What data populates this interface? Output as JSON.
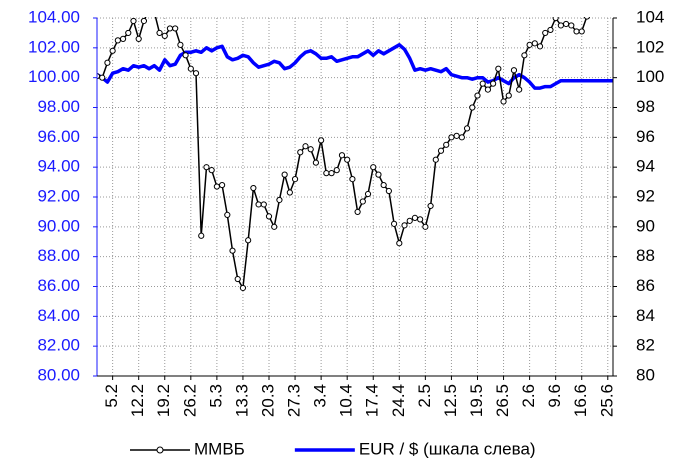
{
  "chart_data": {
    "type": "line",
    "categories": [
      null,
      null,
      null,
      "5.2",
      null,
      null,
      null,
      null,
      "12.2",
      null,
      null,
      null,
      null,
      "19.2",
      null,
      null,
      null,
      null,
      "26.2",
      null,
      null,
      null,
      null,
      "5.3",
      null,
      null,
      null,
      null,
      "13.3",
      null,
      null,
      null,
      null,
      "20.3",
      null,
      null,
      null,
      null,
      "27.3",
      null,
      null,
      null,
      null,
      "3.4",
      null,
      null,
      null,
      null,
      "10.4",
      null,
      null,
      null,
      null,
      "17.4",
      null,
      null,
      null,
      null,
      "24.4",
      null,
      null,
      null,
      null,
      "2.5",
      null,
      null,
      null,
      null,
      "12.5",
      null,
      null,
      null,
      null,
      "19.5",
      null,
      null,
      null,
      null,
      "26.5",
      null,
      null,
      null,
      null,
      "2.6",
      null,
      null,
      null,
      null,
      "9.6",
      null,
      null,
      null,
      null,
      "16.6",
      null,
      null,
      null,
      null,
      "25.6",
      null
    ],
    "series": [
      {
        "name": "ММВБ",
        "color": "#000000",
        "axis": "y2",
        "marker": "circle",
        "values": [
          100.1,
          100.0,
          101.0,
          101.8,
          102.5,
          102.6,
          103.0,
          103.8,
          102.6,
          103.8,
          104.6,
          104.4,
          103.0,
          102.8,
          103.3,
          103.3,
          102.2,
          101.5,
          100.6,
          100.3,
          89.4,
          94.0,
          93.8,
          92.7,
          92.8,
          90.8,
          88.4,
          86.5,
          85.9,
          89.1,
          92.6,
          91.5,
          91.5,
          90.7,
          90.0,
          91.8,
          93.5,
          92.3,
          93.2,
          95.0,
          95.4,
          95.2,
          94.3,
          95.8,
          93.6,
          93.6,
          93.8,
          94.8,
          94.5,
          93.2,
          91.0,
          91.7,
          92.2,
          94.0,
          93.5,
          92.8,
          92.4,
          90.2,
          88.9,
          90.1,
          90.4,
          90.6,
          90.5,
          90.0,
          91.4,
          94.5,
          95.1,
          95.5,
          96.0,
          96.1,
          96.0,
          96.6,
          98.0,
          98.8,
          99.6,
          99.2,
          99.6,
          100.6,
          98.4,
          98.8,
          100.5,
          99.2,
          101.5,
          102.2,
          102.3,
          102.1,
          103.0,
          103.2,
          104.0,
          103.5,
          103.6,
          103.5,
          103.1,
          103.1,
          104.1,
          104.6,
          105.0,
          105.5,
          null,
          null
        ]
      },
      {
        "name": "EUR / $ (шкала слева)",
        "color": "#0000ff",
        "axis": "y",
        "values": [
          100.2,
          100.0,
          99.7,
          100.3,
          100.4,
          100.6,
          100.5,
          100.8,
          100.7,
          100.8,
          100.6,
          100.8,
          100.5,
          101.2,
          100.8,
          100.9,
          101.5,
          101.7,
          101.7,
          101.8,
          101.7,
          102.0,
          101.8,
          102.0,
          102.1,
          101.4,
          101.2,
          101.3,
          101.5,
          101.4,
          101.0,
          100.7,
          100.8,
          100.9,
          101.1,
          101.0,
          100.6,
          100.7,
          101.0,
          101.4,
          101.7,
          101.8,
          101.6,
          101.3,
          101.3,
          101.4,
          101.1,
          101.2,
          101.3,
          101.4,
          101.4,
          101.6,
          101.8,
          101.5,
          101.8,
          101.6,
          101.8,
          102.0,
          102.2,
          101.9,
          101.3,
          100.5,
          100.6,
          100.5,
          100.6,
          100.5,
          100.4,
          100.6,
          100.2,
          100.1,
          100.0,
          100.0,
          99.9,
          100.0,
          100.0,
          99.7,
          99.8,
          100.0,
          99.8,
          99.6,
          100.0,
          100.2,
          100.0,
          99.7,
          99.3,
          99.3,
          99.4,
          99.4,
          99.6,
          99.8,
          99.8,
          99.8,
          99.8,
          99.8,
          99.8,
          99.8,
          99.8,
          99.8,
          99.8,
          99.8
        ]
      }
    ],
    "ylim": [
      80,
      104
    ],
    "yticks": [
      {
        "value": 80,
        "label": "80.00"
      },
      {
        "value": 82,
        "label": "82.00"
      },
      {
        "value": 84,
        "label": "84.00"
      },
      {
        "value": 86,
        "label": "86.00"
      },
      {
        "value": 88,
        "label": "88.00"
      },
      {
        "value": 90,
        "label": "90.00"
      },
      {
        "value": 92,
        "label": "92.00"
      },
      {
        "value": 94,
        "label": "94.00"
      },
      {
        "value": 96,
        "label": "96.00"
      },
      {
        "value": 98,
        "label": "98.00"
      },
      {
        "value": 100,
        "label": "100.00"
      },
      {
        "value": 102,
        "label": "102.00"
      },
      {
        "value": 104,
        "label": "104.00"
      }
    ],
    "y2lim": [
      80,
      104
    ],
    "y2ticks": [
      80,
      82,
      84,
      86,
      88,
      90,
      92,
      94,
      96,
      98,
      100,
      102,
      104
    ],
    "ytick_color": "#1a1aff",
    "grid": true,
    "legend": "bottom"
  }
}
